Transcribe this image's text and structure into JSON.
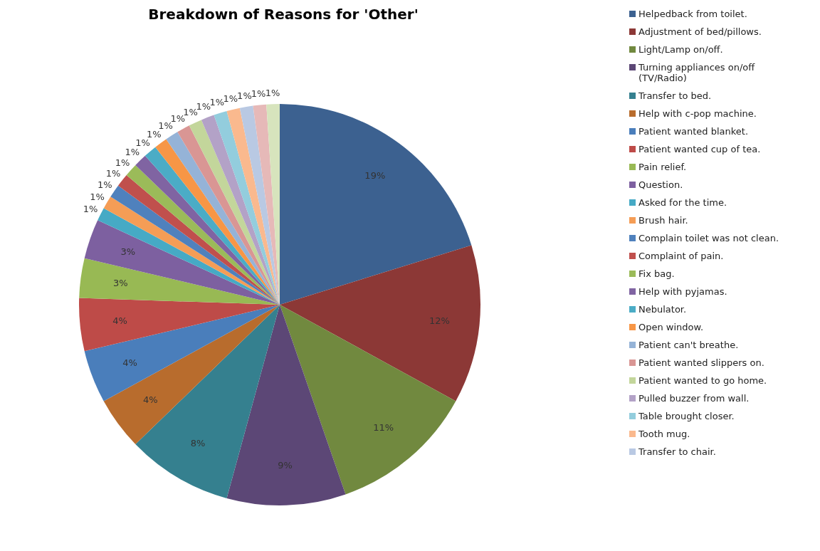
{
  "chart_data": {
    "type": "pie",
    "title": "Breakdown of Reasons for 'Other'",
    "categories": [
      "Helpedback from toilet.",
      "Adjustment of bed/pillows.",
      "Light/Lamp on/off.",
      "Turning appliances on/off (TV/Radio)",
      "Transfer to bed.",
      "Help with c-pop machine.",
      "Patient wanted blanket.",
      "Patient wanted cup of tea.",
      "Pain relief.",
      "Question.",
      "Asked for the time.",
      "Brush hair.",
      "Complain toilet was not clean.",
      "Complaint of pain.",
      "Fix bag.",
      "Help with pyjamas.",
      "Nebulator.",
      "Open window.",
      "Patient can't breathe.",
      "Patient wanted slippers on.",
      "Patient wanted to go home.",
      "Pulled buzzer from wall.",
      "Table brought closer.",
      "Tooth mug.",
      "Transfer to chair.",
      null,
      null
    ],
    "values": [
      19,
      12,
      11,
      9,
      8,
      4,
      4,
      4,
      3,
      3,
      1,
      1,
      1,
      1,
      1,
      1,
      1,
      1,
      1,
      1,
      1,
      1,
      1,
      1,
      1,
      1,
      1
    ],
    "value_labels": [
      "19%",
      "12%",
      "11%",
      "9%",
      "8%",
      "4%",
      "4%",
      "4%",
      "3%",
      "3%",
      "1%",
      "1%",
      "1%",
      "1%",
      "1%",
      "1%",
      "1%",
      "1%",
      "1%",
      "1%",
      "1%",
      "1%",
      "1%",
      "1%",
      "1%",
      "1%",
      "1%"
    ],
    "colors": [
      "#3c6190",
      "#8c3836",
      "#71893f",
      "#5c4776",
      "#35808f",
      "#b86c2d",
      "#4a7ebb",
      "#be4b48",
      "#98b954",
      "#7d60a0",
      "#46aac5",
      "#f59d56",
      "#4f81bd",
      "#c0504d",
      "#9bbb59",
      "#8064a2",
      "#4bacc6",
      "#f79646",
      "#95b3d7",
      "#d99694",
      "#c3d69b",
      "#b3a2c7",
      "#93cddd",
      "#fab98e",
      "#b9c9e3",
      "#e6b9b8",
      "#d7e4bd"
    ],
    "legend": "right"
  }
}
